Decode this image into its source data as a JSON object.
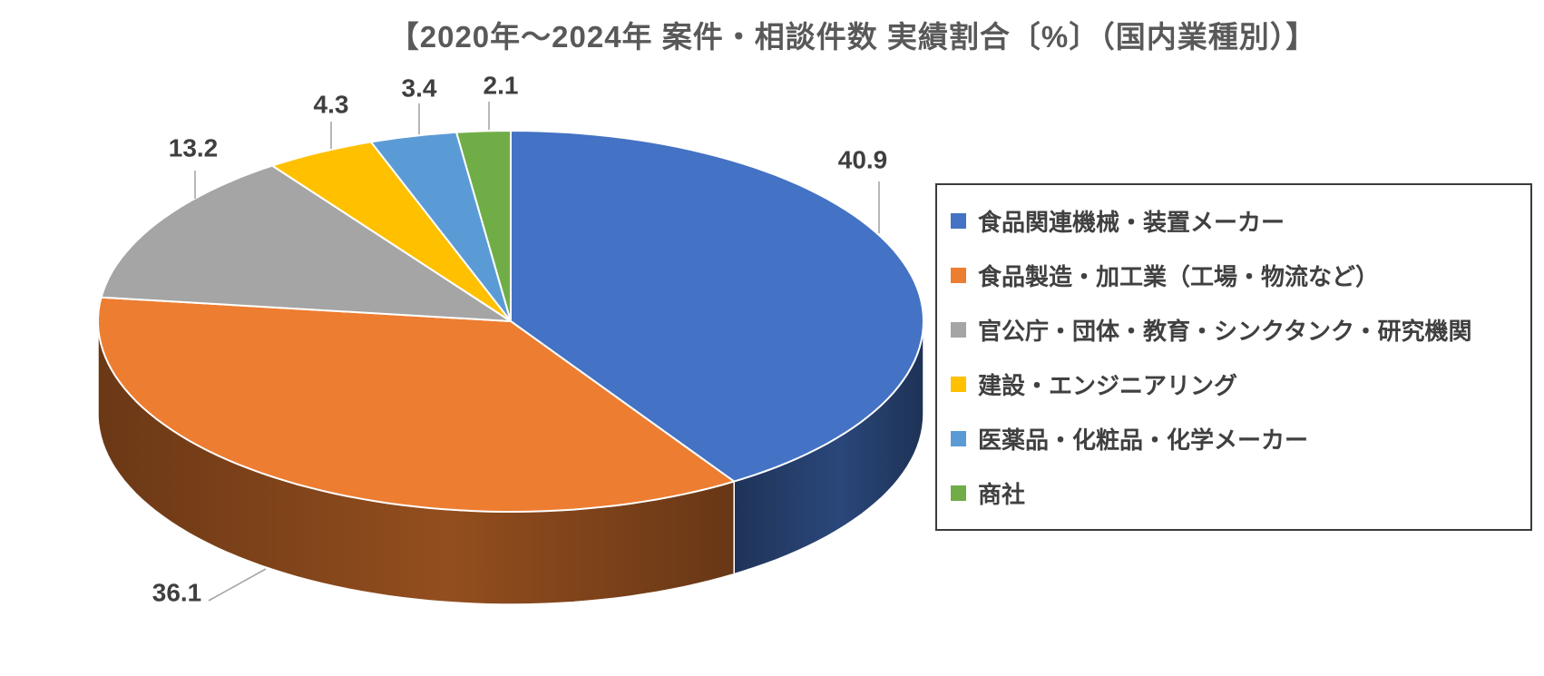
{
  "title": "【2020年〜2024年 案件・相談件数 実績割合〔%〕（国内業種別）】",
  "chart_data": {
    "type": "pie",
    "style": "3d",
    "title": "【2020年〜2024年 案件・相談件数 実績割合〔%〕（国内業種別）】",
    "labels": [
      "食品関連機械・装置メーカー",
      "食品製造・加工業（工場・物流など）",
      "官公庁・団体・教育・シンクタンク・研究機関",
      "建設・エンジニアリング",
      "医薬品・化粧品・化学メーカー",
      "商社"
    ],
    "values": [
      40.9,
      36.1,
      13.2,
      4.3,
      3.4,
      2.1
    ],
    "colors": [
      "#4472C4",
      "#ED7D31",
      "#A5A5A5",
      "#FFC000",
      "#5B9BD5",
      "#70AD47"
    ],
    "unit": "%",
    "start_angle_deg": 0,
    "direction": "clockwise",
    "legend_position": "right",
    "data_labels": "outside-end-with-leader-lines",
    "title_color": "#595959",
    "data_label_color": "#3F3F3F",
    "leader_line_color": "#A6A6A6",
    "legend_text_color": "#404040",
    "legend_border_color": "#3B3B3B",
    "background_color": "#FFFFFF"
  }
}
